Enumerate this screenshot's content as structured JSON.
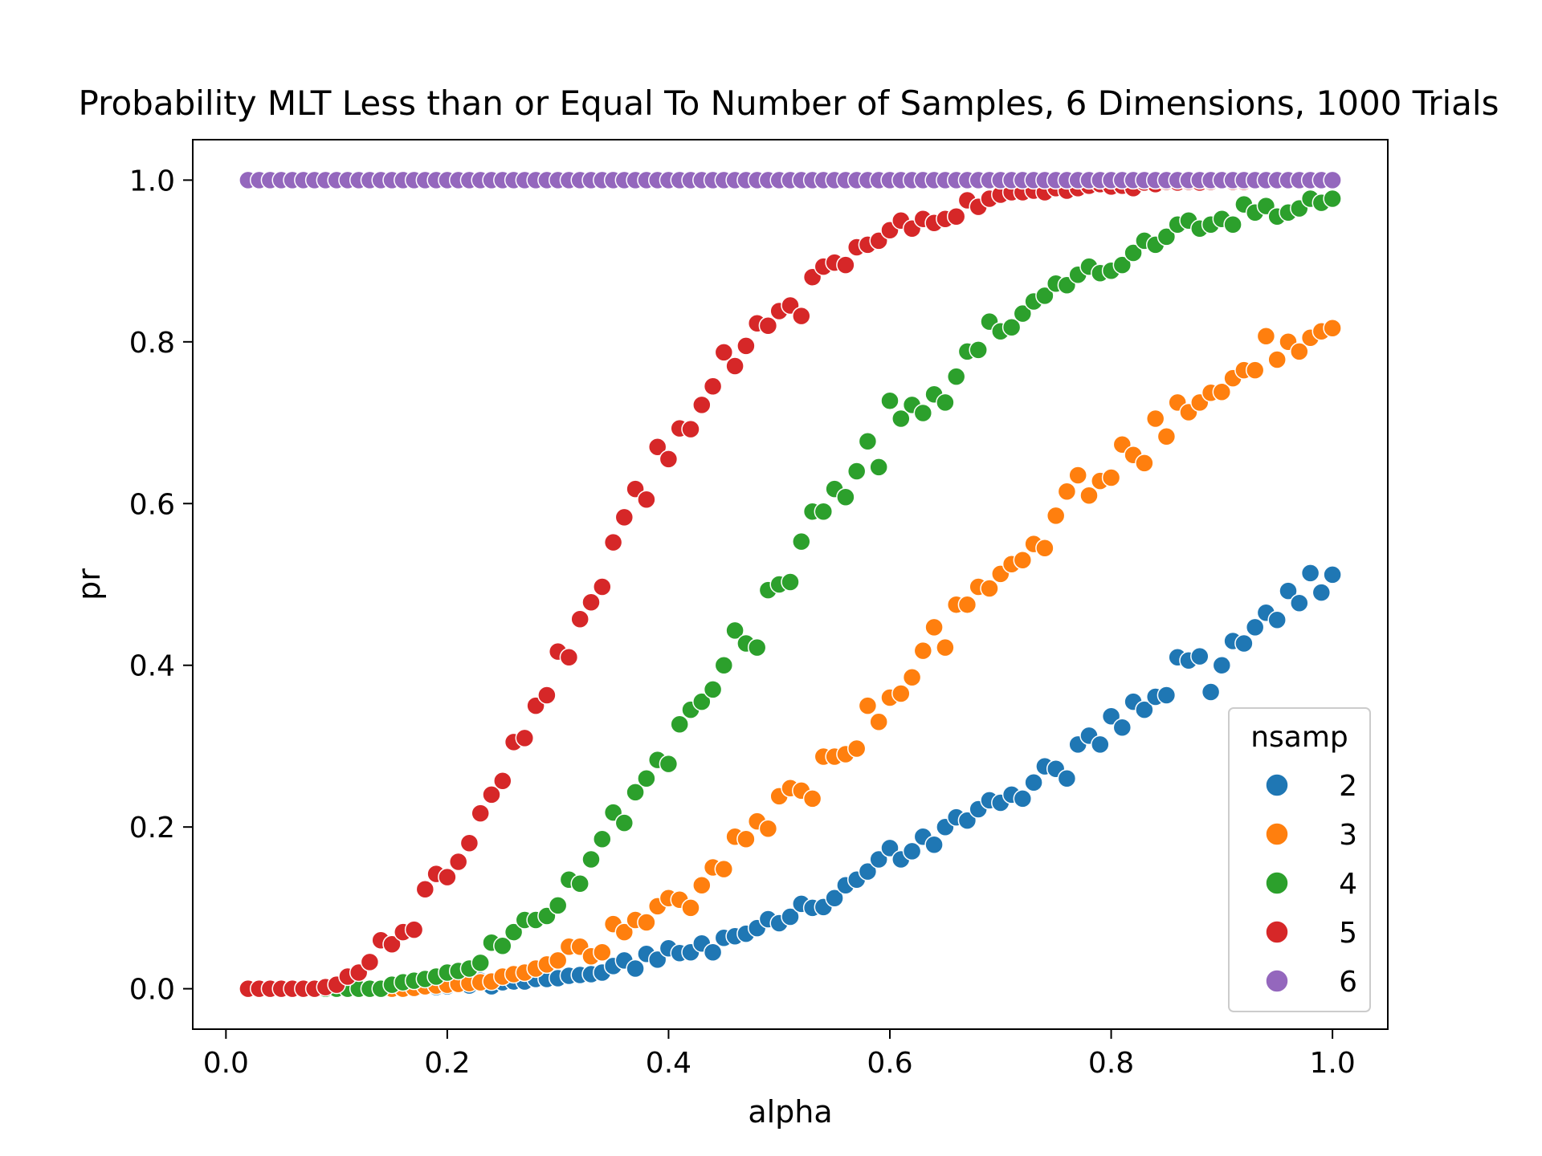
{
  "chart_data": {
    "type": "scatter",
    "title": "Probability MLT Less than or Equal To Number of Samples, 6 Dimensions, 1000 Trials",
    "xlabel": "alpha",
    "ylabel": "pr",
    "xlim": [
      -0.03,
      1.05
    ],
    "ylim": [
      -0.05,
      1.05
    ],
    "xticks": [
      0.0,
      0.2,
      0.4,
      0.6,
      0.8,
      1.0
    ],
    "xtick_labels": [
      "0.0",
      "0.2",
      "0.4",
      "0.6",
      "0.8",
      "1.0"
    ],
    "yticks": [
      0.0,
      0.2,
      0.4,
      0.6,
      0.8,
      1.0
    ],
    "ytick_labels": [
      "0.0",
      "0.2",
      "0.4",
      "0.6",
      "0.8",
      "1.0"
    ],
    "grid": false,
    "legend": {
      "title": "nsamp",
      "placement": "lower-right"
    },
    "x": [
      0.02,
      0.03,
      0.04,
      0.05,
      0.06,
      0.07,
      0.08,
      0.09,
      0.1,
      0.11,
      0.12,
      0.13,
      0.14,
      0.15,
      0.16,
      0.17,
      0.18,
      0.19,
      0.2,
      0.21,
      0.22,
      0.23,
      0.24,
      0.25,
      0.26,
      0.27,
      0.28,
      0.29,
      0.3,
      0.31,
      0.32,
      0.33,
      0.34,
      0.35,
      0.36,
      0.37,
      0.38,
      0.39,
      0.4,
      0.41,
      0.42,
      0.43,
      0.44,
      0.45,
      0.46,
      0.47,
      0.48,
      0.49,
      0.5,
      0.51,
      0.52,
      0.53,
      0.54,
      0.55,
      0.56,
      0.57,
      0.58,
      0.59,
      0.6,
      0.61,
      0.62,
      0.63,
      0.64,
      0.65,
      0.66,
      0.67,
      0.68,
      0.69,
      0.7,
      0.71,
      0.72,
      0.73,
      0.74,
      0.75,
      0.76,
      0.77,
      0.78,
      0.79,
      0.8,
      0.81,
      0.82,
      0.83,
      0.84,
      0.85,
      0.86,
      0.87,
      0.88,
      0.89,
      0.9,
      0.91,
      0.92,
      0.93,
      0.94,
      0.95,
      0.96,
      0.97,
      0.98,
      0.99,
      1.0
    ],
    "series": [
      {
        "name": "2",
        "color": "#1f77b4",
        "values": [
          0,
          0,
          0,
          0,
          0,
          0,
          0,
          0,
          0,
          0,
          0,
          0,
          0,
          0,
          0,
          0.001,
          0.002,
          0.002,
          0.003,
          0.005,
          0.004,
          0.01,
          0.003,
          0.008,
          0.009,
          0.009,
          0.012,
          0.012,
          0.013,
          0.016,
          0.017,
          0.018,
          0.02,
          0.028,
          0.035,
          0.025,
          0.043,
          0.036,
          0.05,
          0.044,
          0.045,
          0.056,
          0.045,
          0.063,
          0.065,
          0.068,
          0.075,
          0.086,
          0.081,
          0.089,
          0.105,
          0.1,
          0.101,
          0.112,
          0.128,
          0.135,
          0.145,
          0.16,
          0.174,
          0.16,
          0.17,
          0.188,
          0.178,
          0.2,
          0.212,
          0.208,
          0.222,
          0.233,
          0.23,
          0.24,
          0.235,
          0.255,
          0.275,
          0.272,
          0.26,
          0.302,
          0.313,
          0.302,
          0.337,
          0.323,
          0.355,
          0.345,
          0.361,
          0.363,
          0.41,
          0.406,
          0.411,
          0.367,
          0.4,
          0.43,
          0.427,
          0.447,
          0.465,
          0.456,
          0.492,
          0.477,
          0.514,
          0.49,
          0.512
        ]
      },
      {
        "name": "3",
        "color": "#ff7f0e",
        "values": [
          0,
          0,
          0,
          0,
          0,
          0,
          0,
          0,
          0,
          0,
          0,
          0,
          0,
          0,
          0,
          0.001,
          0.003,
          0.004,
          0.005,
          0.006,
          0.007,
          0.008,
          0.009,
          0.015,
          0.018,
          0.02,
          0.025,
          0.03,
          0.035,
          0.052,
          0.052,
          0.04,
          0.045,
          0.08,
          0.07,
          0.085,
          0.082,
          0.102,
          0.112,
          0.11,
          0.1,
          0.128,
          0.15,
          0.148,
          0.188,
          0.185,
          0.207,
          0.198,
          0.238,
          0.248,
          0.245,
          0.235,
          0.287,
          0.287,
          0.29,
          0.297,
          0.35,
          0.33,
          0.36,
          0.365,
          0.385,
          0.418,
          0.447,
          0.422,
          0.475,
          0.475,
          0.497,
          0.495,
          0.513,
          0.525,
          0.53,
          0.55,
          0.545,
          0.585,
          0.615,
          0.635,
          0.61,
          0.628,
          0.632,
          0.673,
          0.66,
          0.65,
          0.705,
          0.683,
          0.725,
          0.713,
          0.725,
          0.737,
          0.738,
          0.755,
          0.765,
          0.765,
          0.807,
          0.778,
          0.8,
          0.788,
          0.805,
          0.813,
          0.817
        ]
      },
      {
        "name": "4",
        "color": "#2ca02c",
        "values": [
          0,
          0,
          0,
          0,
          0,
          0,
          0,
          0,
          0,
          0,
          0,
          0,
          0,
          0.005,
          0.008,
          0.01,
          0.012,
          0.015,
          0.02,
          0.022,
          0.025,
          0.032,
          0.057,
          0.053,
          0.07,
          0.085,
          0.085,
          0.09,
          0.103,
          0.135,
          0.13,
          0.16,
          0.185,
          0.218,
          0.205,
          0.243,
          0.26,
          0.283,
          0.278,
          0.327,
          0.345,
          0.355,
          0.37,
          0.4,
          0.443,
          0.427,
          0.422,
          0.493,
          0.5,
          0.503,
          0.553,
          0.59,
          0.59,
          0.618,
          0.608,
          0.64,
          0.677,
          0.645,
          0.727,
          0.705,
          0.722,
          0.712,
          0.735,
          0.725,
          0.757,
          0.788,
          0.79,
          0.825,
          0.813,
          0.818,
          0.835,
          0.85,
          0.857,
          0.872,
          0.87,
          0.883,
          0.893,
          0.885,
          0.888,
          0.895,
          0.91,
          0.925,
          0.92,
          0.93,
          0.945,
          0.95,
          0.94,
          0.945,
          0.952,
          0.945,
          0.97,
          0.96,
          0.968,
          0.955,
          0.96,
          0.965,
          0.977,
          0.972,
          0.977
        ]
      },
      {
        "name": "5",
        "color": "#d62728",
        "values": [
          0,
          0,
          0,
          0,
          0,
          0,
          0,
          0.002,
          0.005,
          0.015,
          0.02,
          0.033,
          0.06,
          0.055,
          0.07,
          0.073,
          0.123,
          0.142,
          0.138,
          0.157,
          0.18,
          0.217,
          0.24,
          0.257,
          0.305,
          0.31,
          0.35,
          0.363,
          0.417,
          0.41,
          0.457,
          0.478,
          0.497,
          0.552,
          0.583,
          0.618,
          0.605,
          0.67,
          0.655,
          0.693,
          0.692,
          0.722,
          0.745,
          0.787,
          0.77,
          0.795,
          0.823,
          0.82,
          0.838,
          0.845,
          0.832,
          0.88,
          0.893,
          0.898,
          0.895,
          0.917,
          0.92,
          0.925,
          0.938,
          0.95,
          0.94,
          0.952,
          0.947,
          0.952,
          0.955,
          0.975,
          0.967,
          0.977,
          0.982,
          0.985,
          0.985,
          0.987,
          0.985,
          0.99,
          0.987,
          0.99,
          0.993,
          0.995,
          0.992,
          0.993,
          0.99,
          0.997,
          0.995,
          0.998,
          0.997,
          0.998,
          0.997,
          0.998,
          0.999,
          0.998,
          0.998,
          0.999,
          1.0,
          0.999,
          0.999,
          1.0,
          1.0,
          1.0,
          1.0
        ]
      },
      {
        "name": "6",
        "color": "#9467bd",
        "values": [
          1,
          1,
          1,
          1,
          1,
          1,
          1,
          1,
          1,
          1,
          1,
          1,
          1,
          1,
          1,
          1,
          1,
          1,
          1,
          1,
          1,
          1,
          1,
          1,
          1,
          1,
          1,
          1,
          1,
          1,
          1,
          1,
          1,
          1,
          1,
          1,
          1,
          1,
          1,
          1,
          1,
          1,
          1,
          1,
          1,
          1,
          1,
          1,
          1,
          1,
          1,
          1,
          1,
          1,
          1,
          1,
          1,
          1,
          1,
          1,
          1,
          1,
          1,
          1,
          1,
          1,
          1,
          1,
          1,
          1,
          1,
          1,
          1,
          1,
          1,
          1,
          1,
          1,
          1,
          1,
          1,
          1,
          1,
          1,
          1,
          1,
          1,
          1,
          1,
          1,
          1,
          1,
          1,
          1,
          1,
          1,
          1,
          1,
          1
        ]
      }
    ]
  }
}
